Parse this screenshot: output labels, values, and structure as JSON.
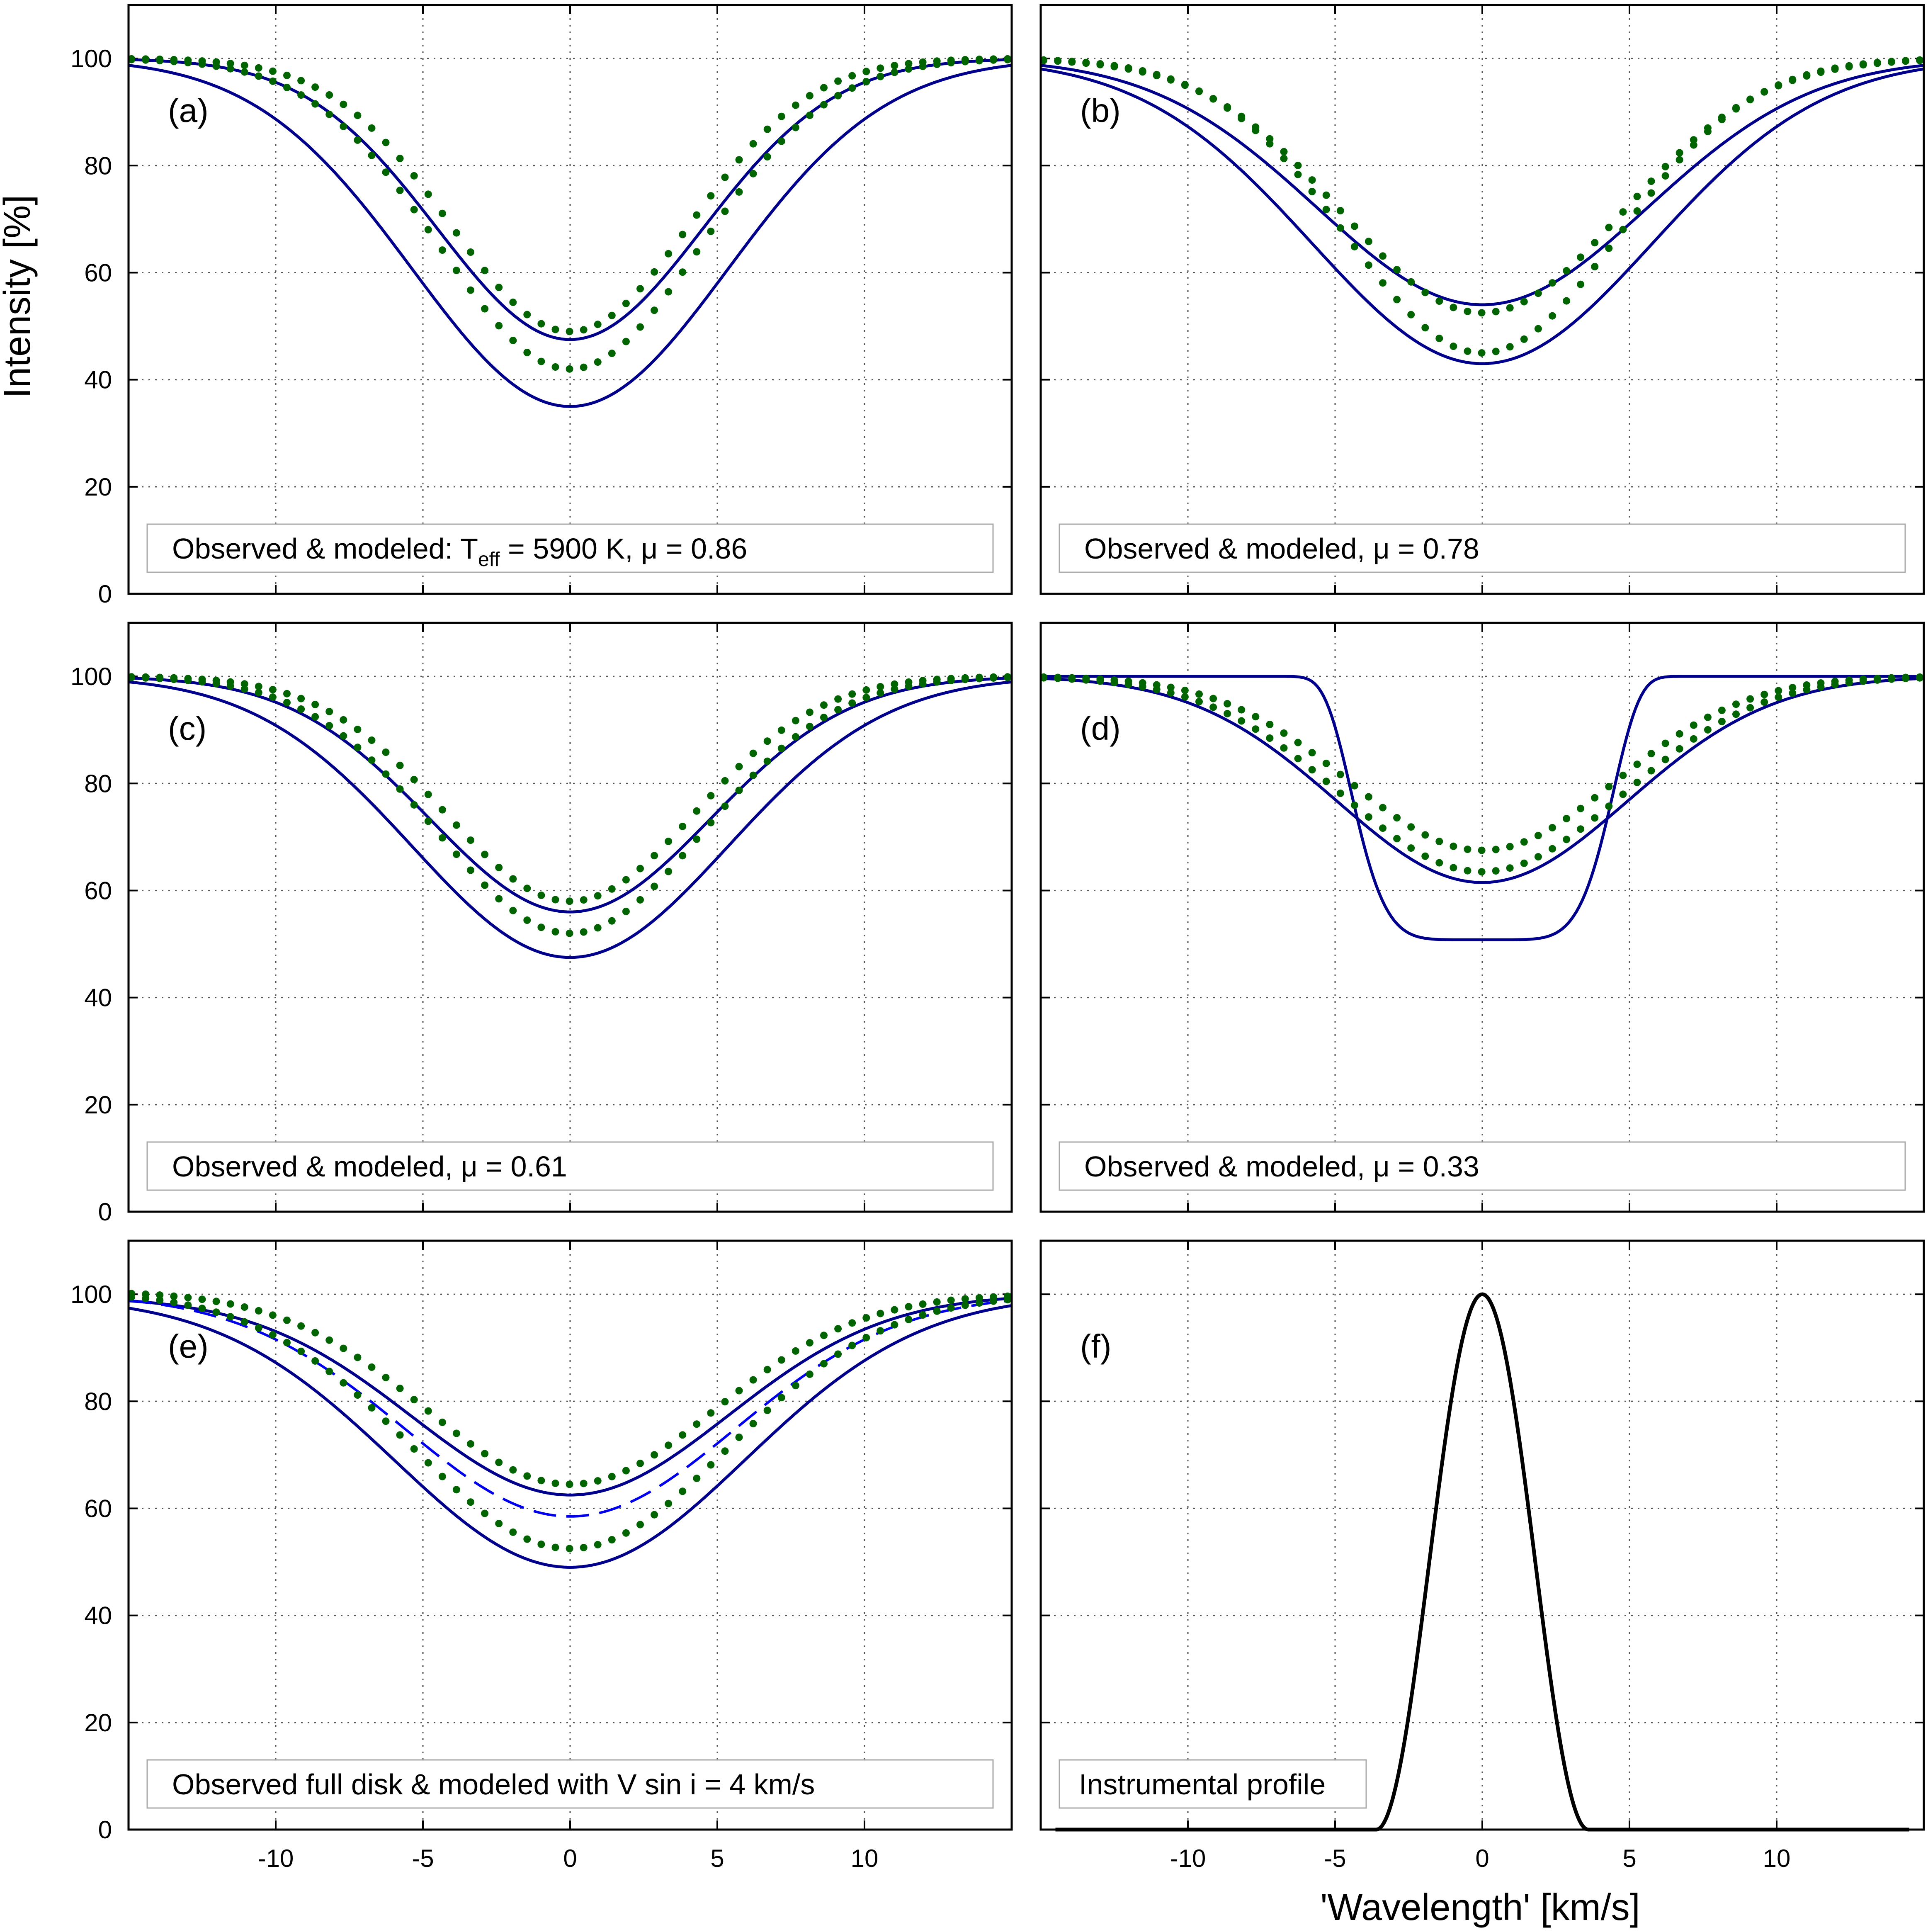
{
  "figure": {
    "ylabel": "Intensity [%]",
    "xlabel": "'Wavelength'  [km/s]",
    "colors": {
      "model": "#00008b",
      "observed": "#006400",
      "dashed": "#0000ee",
      "instrument": "#000000",
      "grid": "#555555"
    }
  },
  "chart_data": [
    {
      "type": "line",
      "panel": "a",
      "label": "(a)",
      "note": "Observed & modeled: T",
      "note_sub": "eff",
      "note_tail": " = 5900 K, μ = 0.86",
      "xlim": [
        -15,
        15
      ],
      "ylim": [
        0,
        110
      ],
      "xticks": [
        -10,
        -5,
        0,
        5,
        10
      ],
      "yticks": [
        0,
        20,
        40,
        60,
        80,
        100
      ],
      "xticklabels": [],
      "yticklabels": [
        "0",
        "20",
        "40",
        "60",
        "80",
        "100"
      ],
      "series": [
        {
          "name": "modeled (solid)",
          "style": "solid",
          "min": 47.5,
          "hw": 5.3
        },
        {
          "name": "modeled (solid)",
          "style": "solid",
          "min": 35.0,
          "hw": 6.3
        },
        {
          "name": "observed (dotted)",
          "style": "dotted",
          "min": 49.0,
          "hw": 4.8
        },
        {
          "name": "observed (dotted)",
          "style": "dotted",
          "min": 42.0,
          "hw": 5.2
        }
      ]
    },
    {
      "type": "line",
      "panel": "b",
      "label": "(b)",
      "note": "Observed & modeled, μ = 0.78",
      "note_sub": "",
      "note_tail": "",
      "xlim": [
        -15,
        15
      ],
      "ylim": [
        0,
        110
      ],
      "xticks": [
        -10,
        -5,
        0,
        5,
        10
      ],
      "yticks": [
        0,
        20,
        40,
        60,
        80,
        100
      ],
      "xticklabels": [],
      "yticklabels": [],
      "series": [
        {
          "name": "modeled (solid)",
          "style": "solid",
          "min": 54.0,
          "hw": 6.6
        },
        {
          "name": "modeled (solid)",
          "style": "solid",
          "min": 43.0,
          "hw": 6.8
        },
        {
          "name": "observed (dotted)",
          "style": "dotted",
          "min": 52.5,
          "hw": 5.6
        },
        {
          "name": "observed (dotted)",
          "style": "dotted",
          "min": 45.0,
          "hw": 5.4
        }
      ]
    },
    {
      "type": "line",
      "panel": "c",
      "label": "(c)",
      "note": "Observed & modeled, μ = 0.61",
      "note_sub": "",
      "note_tail": "",
      "xlim": [
        -15,
        15
      ],
      "ylim": [
        0,
        110
      ],
      "xticks": [
        -10,
        -5,
        0,
        5,
        10
      ],
      "yticks": [
        0,
        20,
        40,
        60,
        80,
        100
      ],
      "xticklabels": [],
      "yticklabels": [
        "0",
        "20",
        "40",
        "60",
        "80",
        "100"
      ],
      "series": [
        {
          "name": "modeled (solid)",
          "style": "solid",
          "min": 56.0,
          "hw": 5.6
        },
        {
          "name": "modeled (solid)",
          "style": "solid",
          "min": 47.5,
          "hw": 6.3
        },
        {
          "name": "observed (dotted)",
          "style": "dotted",
          "min": 58.0,
          "hw": 5.0
        },
        {
          "name": "observed (dotted)",
          "style": "dotted",
          "min": 52.0,
          "hw": 5.3
        }
      ]
    },
    {
      "type": "line",
      "panel": "d",
      "label": "(d)",
      "note": "Observed & modeled, μ = 0.33",
      "note_sub": "",
      "note_tail": "",
      "xlim": [
        -15,
        15
      ],
      "ylim": [
        0,
        110
      ],
      "xticks": [
        -10,
        -5,
        0,
        5,
        10
      ],
      "yticks": [
        0,
        20,
        40,
        60,
        80,
        100
      ],
      "xticklabels": [],
      "yticklabels": [],
      "series": [
        {
          "name": "modeled (solid)",
          "style": "solid",
          "min": 61.5,
          "hw": 5.8
        },
        {
          "name": "modeled (flat-bottom)",
          "style": "solid-flat",
          "min": 50.8,
          "hw": 4.6
        },
        {
          "name": "observed (dotted)",
          "style": "dotted",
          "min": 67.5,
          "hw": 5.3
        },
        {
          "name": "observed (dotted)",
          "style": "dotted",
          "min": 63.5,
          "hw": 5.6
        }
      ]
    },
    {
      "type": "line",
      "panel": "e",
      "label": "(e)",
      "note": "Observed full disk & modeled with V sin i = 4 km/s",
      "note_sub": "",
      "note_tail": "",
      "xlim": [
        -15,
        15
      ],
      "ylim": [
        0,
        110
      ],
      "xticks": [
        -10,
        -5,
        0,
        5,
        10
      ],
      "yticks": [
        0,
        20,
        40,
        60,
        80,
        100
      ],
      "xticklabels": [
        "-10",
        "-5",
        "0",
        "5",
        "10"
      ],
      "yticklabels": [
        "0",
        "20",
        "40",
        "60",
        "80",
        "100"
      ],
      "series": [
        {
          "name": "modeled (solid)",
          "style": "solid",
          "min": 62.5,
          "hw": 6.3,
          "left": 99.5,
          "right": 100.0
        },
        {
          "name": "modeled (solid)",
          "style": "solid",
          "min": 49.0,
          "hw": 7.0,
          "left": 99.5,
          "right": 100.0
        },
        {
          "name": "modeled, V sin i = 4 km/s (dashed)",
          "style": "dashed",
          "min": 58.5,
          "hw": 6.6,
          "left": 100.0,
          "right": 100.0
        },
        {
          "name": "observed (dotted)",
          "style": "dotted",
          "min": 64.5,
          "hw": 5.8,
          "left": 100.5,
          "right": 100.0
        },
        {
          "name": "observed (dotted)",
          "style": "dotted",
          "min": 52.5,
          "hw": 6.3,
          "left": 100.5,
          "right": 100.0
        }
      ]
    },
    {
      "type": "line",
      "panel": "f",
      "label": "(f)",
      "note": "Instrumental profile",
      "note_sub": "",
      "note_tail": "",
      "xlim": [
        -15,
        15
      ],
      "ylim": [
        0,
        110
      ],
      "xticks": [
        -10,
        -5,
        0,
        5,
        10
      ],
      "yticks": [
        0,
        20,
        40,
        60,
        80,
        100
      ],
      "xticklabels": [
        "-10",
        "-5",
        "0",
        "5",
        "10"
      ],
      "yticklabels": [],
      "series": [
        {
          "name": "instrumental profile",
          "style": "instrument",
          "peak": 100,
          "x_range": [
            -14.5,
            14.5
          ],
          "support": [
            -3.6,
            3.6
          ]
        }
      ]
    }
  ]
}
